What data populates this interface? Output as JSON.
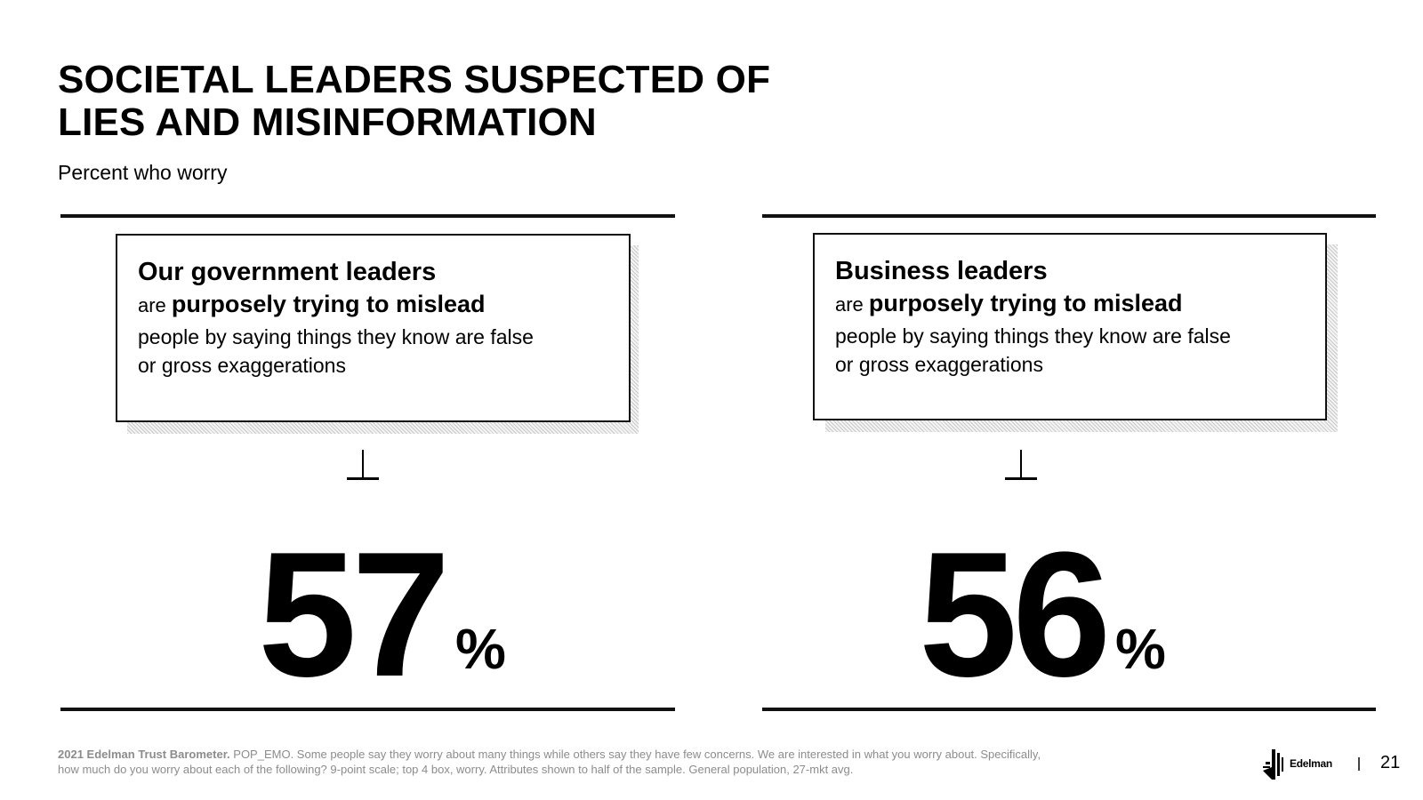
{
  "slide": {
    "title_line1": "SOCIETAL LEADERS SUSPECTED OF",
    "title_line2": "LIES AND MISINFORMATION",
    "subtitle": "Percent who worry"
  },
  "panels": [
    {
      "heading": "Our government leaders",
      "are": "are",
      "emphasis": "purposely trying to mislead",
      "body_line1": "people by saying things they know are false",
      "body_line2": "or gross exaggerations",
      "value": "57",
      "unit": "%"
    },
    {
      "heading": "Business leaders",
      "are": "are",
      "emphasis": "purposely trying to mislead",
      "body_line1": "people by saying things they know are false",
      "body_line2": "or gross exaggerations",
      "value": "56",
      "unit": "%"
    }
  ],
  "footer": {
    "source_bold": "2021 Edelman Trust Barometer.",
    "source_text": " POP_EMO. Some people say they worry about many things while others say they have few concerns. We are interested in what you worry about. Specifically,",
    "source_line2": "how much do you worry about each of the following? 9-point scale; top 4 box, worry. Attributes shown to half of the sample. General population, 27-mkt avg.",
    "logo_text": "Edelman",
    "page_number": "21"
  }
}
